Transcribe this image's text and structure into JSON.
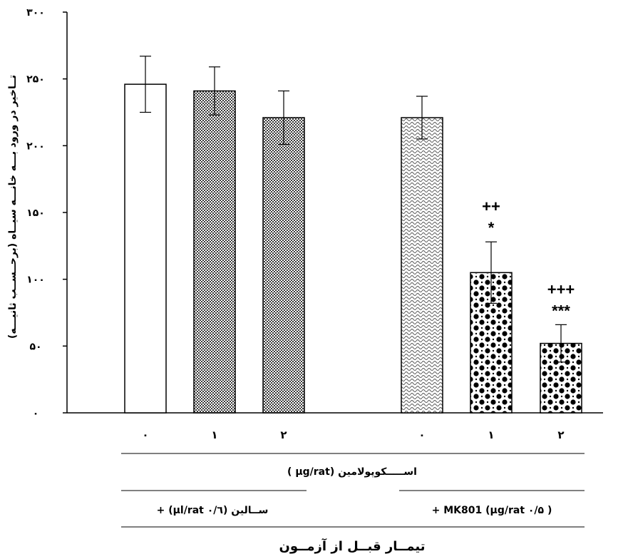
{
  "chart_data": {
    "type": "bar",
    "ylabel": "تــاخیر در ورود بـــه خانـــه سیــاه (برحــســب ثانیـــه)",
    "xlabel": "تیمــار قبــل از آزمــون",
    "ylim": [
      0,
      300
    ],
    "yticks": [
      "۰",
      "۵۰",
      "۱۰۰",
      "۱۵۰",
      "۲۰۰",
      "۲۵۰",
      "۳۰۰"
    ],
    "ytick_values": [
      0,
      50,
      100,
      150,
      200,
      250,
      300
    ],
    "scopolamine_label": "اســـــکوپولامین (µg/rat )",
    "groups": [
      {
        "name": "ســالین (۰/٦ µl/rat) +"
      },
      {
        "name": "MK801 (µg/rat ۰/۵ ) +"
      }
    ],
    "bars": [
      {
        "category": "۰",
        "group": 0,
        "value": 246,
        "error": 21,
        "pattern": "white",
        "significance": [
          "",
          ""
        ]
      },
      {
        "category": "۱",
        "group": 0,
        "value": 241,
        "error": 18,
        "pattern": "dots",
        "significance": [
          "",
          ""
        ]
      },
      {
        "category": "۲",
        "group": 0,
        "value": 221,
        "error": 20,
        "pattern": "dots",
        "significance": [
          "",
          ""
        ]
      },
      {
        "category": "۰",
        "group": 1,
        "value": 221,
        "error": 16,
        "pattern": "wave",
        "significance": [
          "",
          ""
        ]
      },
      {
        "category": "۱",
        "group": 1,
        "value": 105,
        "error": 23,
        "pattern": "checker",
        "significance": [
          "*",
          "++"
        ]
      },
      {
        "category": "۲",
        "group": 1,
        "value": 52,
        "error": 14,
        "pattern": "checker",
        "significance": [
          "***",
          "+++"
        ]
      }
    ],
    "colors": {
      "bar_outline": "#000000",
      "fill_dark": "#000000",
      "fill_light": "#ffffff"
    }
  }
}
